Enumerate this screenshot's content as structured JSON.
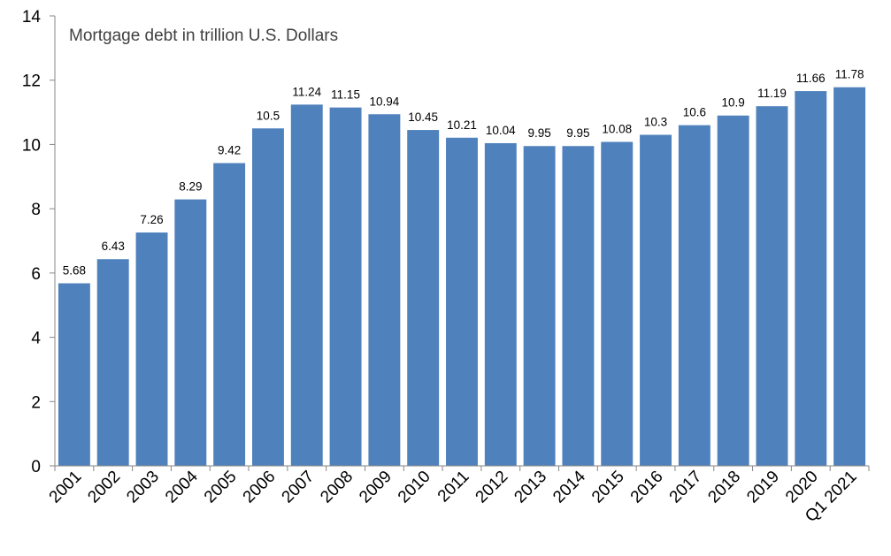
{
  "chart_data": {
    "type": "bar",
    "title": "",
    "xlabel": "",
    "ylabel": "Mortgage debt in trillion U.S. Dollars",
    "ylim": [
      0,
      14
    ],
    "yticks": [
      "0",
      "2",
      "4",
      "6",
      "8",
      "10",
      "12",
      "14"
    ],
    "grid": false,
    "categories": [
      "2001",
      "2002",
      "2003",
      "2004",
      "2005",
      "2006",
      "2007",
      "2008",
      "2009",
      "2010",
      "2011",
      "2012",
      "2013",
      "2014",
      "2015",
      "2016",
      "2017",
      "2018",
      "2019",
      "2020",
      "Q1 2021"
    ],
    "values": [
      5.68,
      6.43,
      7.26,
      8.29,
      9.42,
      10.5,
      11.24,
      11.15,
      10.94,
      10.45,
      10.21,
      10.04,
      9.95,
      9.95,
      10.08,
      10.3,
      10.6,
      10.9,
      11.19,
      11.66,
      11.78
    ],
    "value_labels": [
      "5.68",
      "6.43",
      "7.26",
      "8.29",
      "9.42",
      "10.5",
      "11.24",
      "11.15",
      "10.94",
      "10.45",
      "10.21",
      "10.04",
      "9.95",
      "9.95",
      "10.08",
      "10.3",
      "10.6",
      "10.9",
      "11.19",
      "11.66",
      "11.78"
    ],
    "bar_color": "#4f81bd"
  }
}
